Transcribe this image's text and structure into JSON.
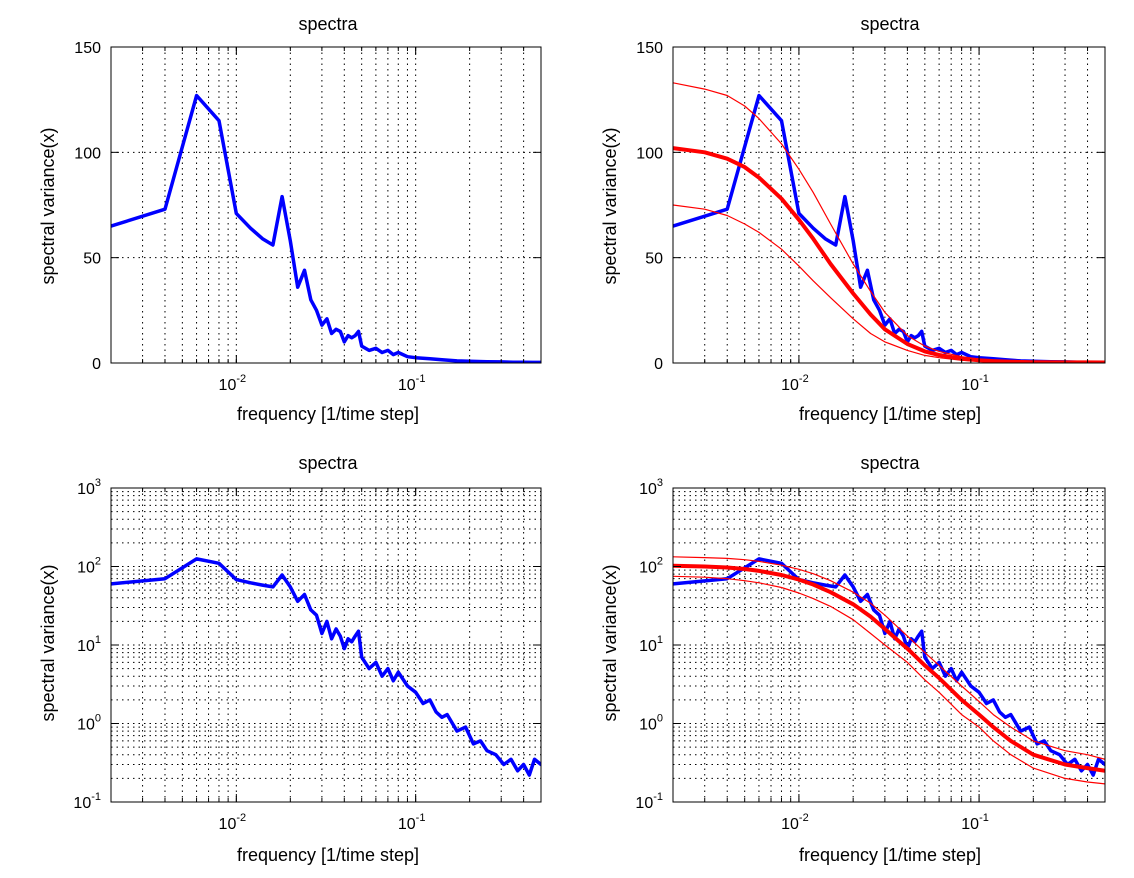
{
  "chart_data": [
    {
      "type": "line",
      "title": "spectra",
      "xlabel": "frequency [1/time step]",
      "ylabel": "spectral variance(x)",
      "xscale": "log",
      "yscale": "linear",
      "xlim": [
        0.002,
        0.5
      ],
      "ylim": [
        0,
        150
      ],
      "xticks": [
        0.01,
        0.1
      ],
      "yticks": [
        0,
        50,
        100,
        150
      ],
      "grid": true,
      "series": [
        {
          "color": "#0000ff",
          "role": "observed",
          "x": [
            0.002,
            0.004,
            0.006,
            0.008,
            0.01,
            0.012,
            0.014,
            0.016,
            0.018,
            0.02,
            0.022,
            0.024,
            0.026,
            0.028,
            0.03,
            0.032,
            0.034,
            0.036,
            0.038,
            0.04,
            0.042,
            0.044,
            0.046,
            0.048,
            0.05,
            0.055,
            0.06,
            0.065,
            0.07,
            0.075,
            0.08,
            0.09,
            0.1,
            0.12,
            0.14,
            0.17,
            0.2,
            0.25,
            0.3,
            0.35,
            0.4,
            0.45,
            0.5
          ],
          "y": [
            65,
            73,
            127,
            115,
            71,
            64,
            59,
            56,
            79,
            58,
            36,
            44,
            30,
            25,
            18,
            21,
            14,
            16,
            15,
            10,
            13,
            12,
            13,
            15,
            8,
            6,
            7,
            5,
            6,
            4,
            5,
            3,
            2.5,
            2,
            1.5,
            1,
            0.8,
            0.6,
            0.5,
            0.4,
            0.35,
            0.3,
            0.3
          ]
        }
      ]
    },
    {
      "type": "line",
      "title": "spectra",
      "xlabel": "frequency [1/time step]",
      "ylabel": "spectral variance(x)",
      "xscale": "log",
      "yscale": "linear",
      "xlim": [
        0.002,
        0.5
      ],
      "ylim": [
        0,
        150
      ],
      "xticks": [
        0.01,
        0.1
      ],
      "yticks": [
        0,
        50,
        100,
        150
      ],
      "grid": true,
      "series": [
        {
          "color": "#0000ff",
          "role": "observed",
          "x": [
            0.002,
            0.004,
            0.006,
            0.008,
            0.01,
            0.012,
            0.014,
            0.016,
            0.018,
            0.02,
            0.022,
            0.024,
            0.026,
            0.028,
            0.03,
            0.032,
            0.034,
            0.036,
            0.038,
            0.04,
            0.042,
            0.044,
            0.046,
            0.048,
            0.05,
            0.055,
            0.06,
            0.065,
            0.07,
            0.075,
            0.08,
            0.09,
            0.1,
            0.12,
            0.14,
            0.17,
            0.2,
            0.25,
            0.3,
            0.35,
            0.4,
            0.45,
            0.5
          ],
          "y": [
            65,
            73,
            127,
            115,
            71,
            64,
            59,
            56,
            79,
            58,
            36,
            44,
            30,
            25,
            18,
            21,
            14,
            16,
            15,
            10,
            13,
            12,
            13,
            15,
            8,
            6,
            7,
            5,
            6,
            4,
            5,
            3,
            2.5,
            2,
            1.5,
            1,
            0.8,
            0.6,
            0.5,
            0.4,
            0.35,
            0.3,
            0.3
          ]
        },
        {
          "color": "#ff0000",
          "role": "fit",
          "x": [
            0.002,
            0.003,
            0.004,
            0.005,
            0.006,
            0.008,
            0.01,
            0.012,
            0.015,
            0.02,
            0.025,
            0.03,
            0.04,
            0.05,
            0.06,
            0.08,
            0.1,
            0.12,
            0.15,
            0.2,
            0.3,
            0.4,
            0.5
          ],
          "y": [
            102,
            100,
            97,
            93,
            88,
            78,
            68,
            59,
            47,
            33,
            23,
            16,
            9,
            5.5,
            3.8,
            2,
            1.3,
            0.9,
            0.6,
            0.4,
            0.3,
            0.27,
            0.25
          ]
        },
        {
          "color": "#ff0000",
          "role": "upper bound",
          "x": [
            0.002,
            0.003,
            0.004,
            0.005,
            0.006,
            0.008,
            0.01,
            0.012,
            0.015,
            0.02,
            0.025,
            0.03,
            0.04,
            0.05,
            0.06,
            0.08,
            0.1,
            0.12,
            0.15,
            0.2,
            0.3,
            0.4,
            0.5
          ],
          "y": [
            133,
            130,
            127,
            122,
            116,
            104,
            92,
            81,
            66,
            47,
            34,
            24,
            13,
            8,
            5.5,
            3,
            1.9,
            1.3,
            0.9,
            0.6,
            0.45,
            0.4,
            0.35
          ]
        },
        {
          "color": "#ff0000",
          "role": "lower bound",
          "x": [
            0.002,
            0.003,
            0.004,
            0.005,
            0.006,
            0.008,
            0.01,
            0.012,
            0.015,
            0.02,
            0.025,
            0.03,
            0.04,
            0.05,
            0.06,
            0.08,
            0.1,
            0.12,
            0.15,
            0.2,
            0.3,
            0.4,
            0.5
          ],
          "y": [
            75,
            73,
            70,
            66,
            62,
            54,
            46,
            39,
            31,
            21,
            14,
            10,
            6,
            3.6,
            2.5,
            1.3,
            0.9,
            0.6,
            0.4,
            0.27,
            0.2,
            0.18,
            0.17
          ]
        }
      ]
    },
    {
      "type": "line",
      "title": "spectra",
      "xlabel": "frequency [1/time step]",
      "ylabel": "spectral variance(x)",
      "xscale": "log",
      "yscale": "log",
      "xlim": [
        0.002,
        0.5
      ],
      "ylim": [
        0.1,
        1000
      ],
      "xticks": [
        0.01,
        0.1
      ],
      "yticks": [
        0.1,
        1,
        10,
        100,
        1000
      ],
      "grid": true,
      "series": [
        {
          "color": "#0000ff",
          "role": "observed",
          "x": [
            0.002,
            0.004,
            0.006,
            0.008,
            0.01,
            0.012,
            0.014,
            0.016,
            0.018,
            0.02,
            0.022,
            0.024,
            0.026,
            0.028,
            0.03,
            0.032,
            0.034,
            0.036,
            0.038,
            0.04,
            0.042,
            0.044,
            0.046,
            0.048,
            0.05,
            0.055,
            0.06,
            0.065,
            0.07,
            0.075,
            0.08,
            0.09,
            0.1,
            0.11,
            0.12,
            0.13,
            0.14,
            0.15,
            0.17,
            0.19,
            0.21,
            0.23,
            0.25,
            0.28,
            0.31,
            0.34,
            0.37,
            0.4,
            0.43,
            0.46,
            0.5
          ],
          "y": [
            60,
            70,
            125,
            110,
            68,
            62,
            58,
            55,
            78,
            55,
            36,
            44,
            28,
            24,
            14,
            20,
            12,
            16,
            13,
            9,
            12,
            11,
            13,
            15,
            7,
            5,
            6,
            4,
            5,
            3.5,
            4.5,
            3,
            2.5,
            1.8,
            2,
            1.4,
            1.2,
            1.3,
            0.8,
            0.9,
            0.55,
            0.6,
            0.45,
            0.4,
            0.3,
            0.35,
            0.25,
            0.3,
            0.22,
            0.35,
            0.3
          ]
        }
      ]
    },
    {
      "type": "line",
      "title": "spectra",
      "xlabel": "frequency [1/time step]",
      "ylabel": "spectral variance(x)",
      "xscale": "log",
      "yscale": "log",
      "xlim": [
        0.002,
        0.5
      ],
      "ylim": [
        0.1,
        1000
      ],
      "xticks": [
        0.01,
        0.1
      ],
      "yticks": [
        0.1,
        1,
        10,
        100,
        1000
      ],
      "grid": true,
      "series": [
        {
          "color": "#0000ff",
          "role": "observed",
          "x": [
            0.002,
            0.004,
            0.006,
            0.008,
            0.01,
            0.012,
            0.014,
            0.016,
            0.018,
            0.02,
            0.022,
            0.024,
            0.026,
            0.028,
            0.03,
            0.032,
            0.034,
            0.036,
            0.038,
            0.04,
            0.042,
            0.044,
            0.046,
            0.048,
            0.05,
            0.055,
            0.06,
            0.065,
            0.07,
            0.075,
            0.08,
            0.09,
            0.1,
            0.11,
            0.12,
            0.13,
            0.14,
            0.15,
            0.17,
            0.19,
            0.21,
            0.23,
            0.25,
            0.28,
            0.31,
            0.34,
            0.37,
            0.4,
            0.43,
            0.46,
            0.5
          ],
          "y": [
            60,
            70,
            125,
            110,
            68,
            62,
            58,
            55,
            78,
            55,
            36,
            44,
            28,
            24,
            14,
            20,
            12,
            16,
            13,
            9,
            12,
            11,
            13,
            15,
            7,
            5,
            6,
            4,
            5,
            3.5,
            4.5,
            3,
            2.5,
            1.8,
            2,
            1.4,
            1.2,
            1.3,
            0.8,
            0.9,
            0.55,
            0.6,
            0.45,
            0.4,
            0.3,
            0.35,
            0.25,
            0.3,
            0.22,
            0.35,
            0.3
          ]
        },
        {
          "color": "#ff0000",
          "role": "fit",
          "x": [
            0.002,
            0.003,
            0.004,
            0.005,
            0.006,
            0.008,
            0.01,
            0.012,
            0.015,
            0.02,
            0.025,
            0.03,
            0.04,
            0.05,
            0.06,
            0.08,
            0.1,
            0.12,
            0.15,
            0.2,
            0.3,
            0.4,
            0.5
          ],
          "y": [
            102,
            100,
            97,
            93,
            88,
            78,
            68,
            59,
            47,
            33,
            23,
            16,
            9,
            5.5,
            3.8,
            2,
            1.3,
            0.9,
            0.6,
            0.4,
            0.3,
            0.27,
            0.25
          ]
        },
        {
          "color": "#ff0000",
          "role": "upper bound",
          "x": [
            0.002,
            0.003,
            0.004,
            0.005,
            0.006,
            0.008,
            0.01,
            0.012,
            0.015,
            0.02,
            0.025,
            0.03,
            0.04,
            0.05,
            0.06,
            0.08,
            0.1,
            0.12,
            0.15,
            0.2,
            0.3,
            0.4,
            0.5
          ],
          "y": [
            133,
            130,
            127,
            122,
            116,
            104,
            92,
            81,
            66,
            47,
            34,
            24,
            13,
            8,
            5.5,
            3,
            1.9,
            1.3,
            0.9,
            0.6,
            0.45,
            0.4,
            0.35
          ]
        },
        {
          "color": "#ff0000",
          "role": "lower bound",
          "x": [
            0.002,
            0.003,
            0.004,
            0.005,
            0.006,
            0.008,
            0.01,
            0.012,
            0.015,
            0.02,
            0.025,
            0.03,
            0.04,
            0.05,
            0.06,
            0.08,
            0.1,
            0.12,
            0.15,
            0.2,
            0.3,
            0.4,
            0.5
          ],
          "y": [
            75,
            73,
            70,
            66,
            62,
            54,
            46,
            39,
            31,
            21,
            14,
            10,
            6,
            3.6,
            2.5,
            1.3,
            0.9,
            0.6,
            0.4,
            0.27,
            0.2,
            0.18,
            0.17
          ]
        }
      ]
    }
  ]
}
